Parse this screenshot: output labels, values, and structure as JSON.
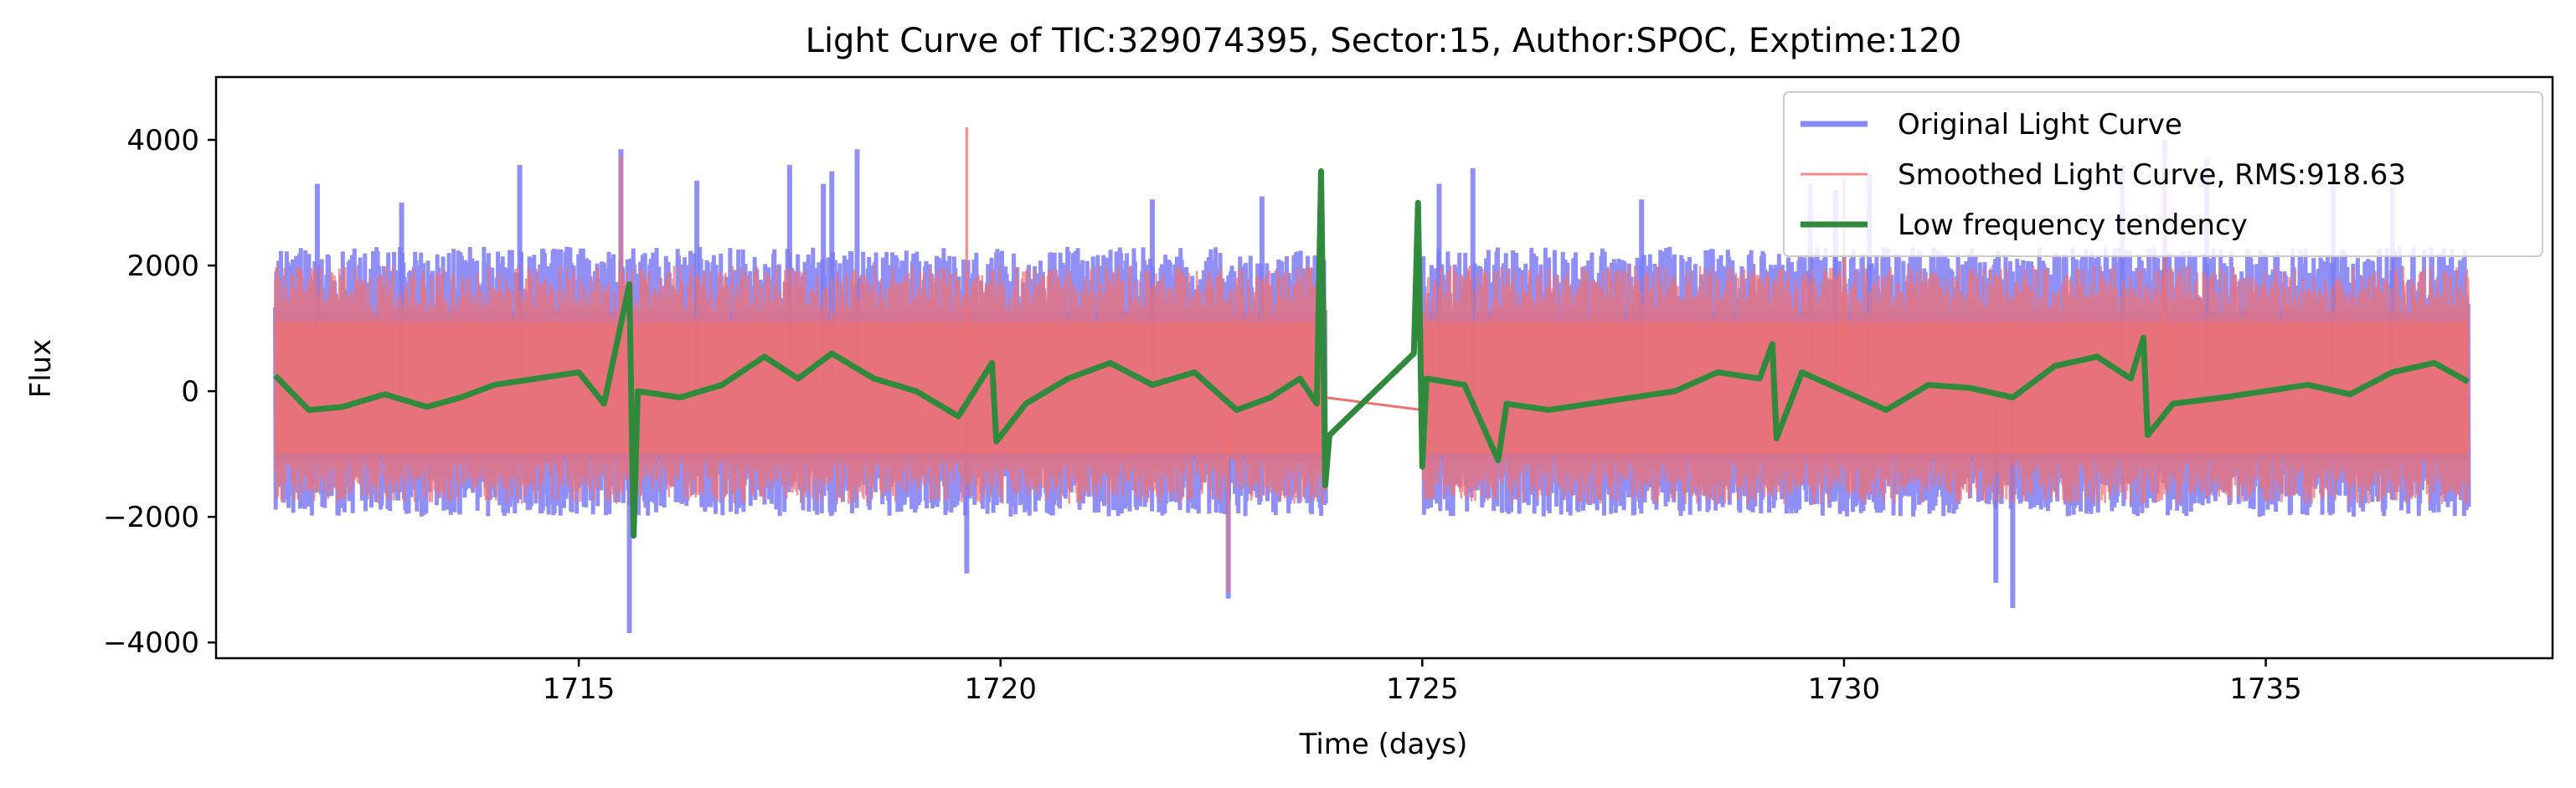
{
  "chart_data": {
    "type": "line",
    "title": "Light Curve of TIC:329074395, Sector:15, Author:SPOC, Exptime:120",
    "xlabel": "Time (days)",
    "ylabel": "Flux",
    "xlim": [
      1710.7,
      1738.4
    ],
    "ylim": [
      -4250,
      5000
    ],
    "xticks": [
      1715,
      1720,
      1725,
      1730,
      1735
    ],
    "xtick_labels": [
      "1715",
      "1720",
      "1725",
      "1730",
      "1735"
    ],
    "yticks": [
      -4000,
      -2000,
      0,
      2000,
      4000
    ],
    "ytick_labels": [
      "−4000",
      "−2000",
      "0",
      "2000",
      "4000"
    ],
    "grid": false,
    "legend_position": "top-right",
    "data_segments": [
      [
        1711.4,
        1723.85
      ],
      [
        1725.0,
        1737.4
      ]
    ],
    "series": [
      {
        "name": "Original Light Curve",
        "color": "#7b7bf5",
        "style": "noise-band",
        "band_lower": -2000,
        "band_upper": 2300,
        "spikes": [
          {
            "x": 1711.9,
            "y": 3300
          },
          {
            "x": 1712.9,
            "y": 3000
          },
          {
            "x": 1714.3,
            "y": 3600
          },
          {
            "x": 1715.5,
            "y": 3850
          },
          {
            "x": 1715.6,
            "y": -3850
          },
          {
            "x": 1716.4,
            "y": 3350
          },
          {
            "x": 1717.5,
            "y": 3600
          },
          {
            "x": 1717.9,
            "y": 3300
          },
          {
            "x": 1718.0,
            "y": 3500
          },
          {
            "x": 1718.3,
            "y": 3850
          },
          {
            "x": 1719.6,
            "y": -2900
          },
          {
            "x": 1721.8,
            "y": 3050
          },
          {
            "x": 1722.7,
            "y": -3300
          },
          {
            "x": 1723.1,
            "y": 3100
          },
          {
            "x": 1725.2,
            "y": 3300
          },
          {
            "x": 1725.6,
            "y": 3550
          },
          {
            "x": 1727.6,
            "y": 3050
          },
          {
            "x": 1729.6,
            "y": 3300
          },
          {
            "x": 1729.9,
            "y": 3200
          },
          {
            "x": 1730.3,
            "y": 3450
          },
          {
            "x": 1732.0,
            "y": -3450
          },
          {
            "x": 1733.3,
            "y": 3600
          },
          {
            "x": 1733.8,
            "y": 4000
          },
          {
            "x": 1734.3,
            "y": 3700
          },
          {
            "x": 1735.8,
            "y": 3350
          },
          {
            "x": 1736.5,
            "y": 3250
          },
          {
            "x": 1731.8,
            "y": -3050
          }
        ]
      },
      {
        "name": "Smoothed Light Curve, RMS:918.63",
        "color": "#f07070",
        "style": "noise-band",
        "band_lower": -1800,
        "band_upper": 2000,
        "spikes": [
          {
            "x": 1719.6,
            "y": 4200
          },
          {
            "x": 1715.5,
            "y": 3750
          },
          {
            "x": 1730.0,
            "y": 3400
          },
          {
            "x": 1733.8,
            "y": 3700
          },
          {
            "x": 1722.7,
            "y": -3200
          }
        ],
        "gap_line": [
          {
            "x": 1723.85,
            "y": -100
          },
          {
            "x": 1725.0,
            "y": -300
          }
        ]
      },
      {
        "name": "Low frequency tendency",
        "color": "#2f8a3c",
        "style": "trend",
        "points": [
          {
            "x": 1711.4,
            "y": 250
          },
          {
            "x": 1711.8,
            "y": -300
          },
          {
            "x": 1712.2,
            "y": -250
          },
          {
            "x": 1712.7,
            "y": -50
          },
          {
            "x": 1713.2,
            "y": -250
          },
          {
            "x": 1713.6,
            "y": -100
          },
          {
            "x": 1714.0,
            "y": 100
          },
          {
            "x": 1714.5,
            "y": 200
          },
          {
            "x": 1715.0,
            "y": 300
          },
          {
            "x": 1715.3,
            "y": -200
          },
          {
            "x": 1715.6,
            "y": 1700
          },
          {
            "x": 1715.65,
            "y": -2300
          },
          {
            "x": 1715.7,
            "y": 0
          },
          {
            "x": 1716.2,
            "y": -100
          },
          {
            "x": 1716.7,
            "y": 100
          },
          {
            "x": 1717.2,
            "y": 550
          },
          {
            "x": 1717.6,
            "y": 200
          },
          {
            "x": 1718.0,
            "y": 600
          },
          {
            "x": 1718.5,
            "y": 200
          },
          {
            "x": 1719.0,
            "y": 0
          },
          {
            "x": 1719.5,
            "y": -400
          },
          {
            "x": 1719.9,
            "y": 450
          },
          {
            "x": 1719.95,
            "y": -800
          },
          {
            "x": 1720.3,
            "y": -200
          },
          {
            "x": 1720.8,
            "y": 200
          },
          {
            "x": 1721.3,
            "y": 450
          },
          {
            "x": 1721.8,
            "y": 100
          },
          {
            "x": 1722.3,
            "y": 300
          },
          {
            "x": 1722.8,
            "y": -300
          },
          {
            "x": 1723.2,
            "y": -100
          },
          {
            "x": 1723.55,
            "y": 200
          },
          {
            "x": 1723.75,
            "y": -200
          },
          {
            "x": 1723.8,
            "y": 3500
          },
          {
            "x": 1723.85,
            "y": -1500
          },
          {
            "x": 1723.9,
            "y": -700
          },
          {
            "x": 1724.9,
            "y": 600
          },
          {
            "x": 1724.95,
            "y": 3000
          },
          {
            "x": 1725.0,
            "y": -1200
          },
          {
            "x": 1725.05,
            "y": 200
          },
          {
            "x": 1725.5,
            "y": 100
          },
          {
            "x": 1725.9,
            "y": -1100
          },
          {
            "x": 1726.0,
            "y": -200
          },
          {
            "x": 1726.5,
            "y": -300
          },
          {
            "x": 1727.0,
            "y": -200
          },
          {
            "x": 1727.5,
            "y": -100
          },
          {
            "x": 1728.0,
            "y": 0
          },
          {
            "x": 1728.5,
            "y": 300
          },
          {
            "x": 1729.0,
            "y": 200
          },
          {
            "x": 1729.15,
            "y": 750
          },
          {
            "x": 1729.2,
            "y": -750
          },
          {
            "x": 1729.5,
            "y": 300
          },
          {
            "x": 1730.0,
            "y": 0
          },
          {
            "x": 1730.5,
            "y": -300
          },
          {
            "x": 1731.0,
            "y": 100
          },
          {
            "x": 1731.5,
            "y": 50
          },
          {
            "x": 1732.0,
            "y": -100
          },
          {
            "x": 1732.5,
            "y": 400
          },
          {
            "x": 1733.0,
            "y": 550
          },
          {
            "x": 1733.4,
            "y": 200
          },
          {
            "x": 1733.55,
            "y": 850
          },
          {
            "x": 1733.6,
            "y": -700
          },
          {
            "x": 1733.9,
            "y": -200
          },
          {
            "x": 1734.5,
            "y": -100
          },
          {
            "x": 1735.0,
            "y": 0
          },
          {
            "x": 1735.5,
            "y": 100
          },
          {
            "x": 1736.0,
            "y": -50
          },
          {
            "x": 1736.5,
            "y": 300
          },
          {
            "x": 1737.0,
            "y": 450
          },
          {
            "x": 1737.4,
            "y": 150
          }
        ]
      }
    ]
  }
}
